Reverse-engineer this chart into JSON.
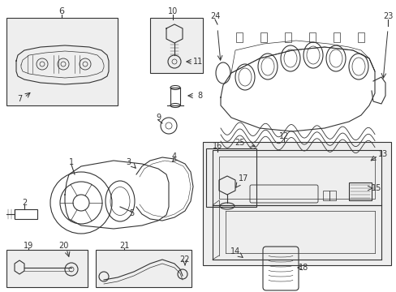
{
  "bg_color": "#ffffff",
  "line_color": "#333333",
  "box_bg": "#eeeeee",
  "fig_w": 4.89,
  "fig_h": 3.6,
  "dpi": 100
}
